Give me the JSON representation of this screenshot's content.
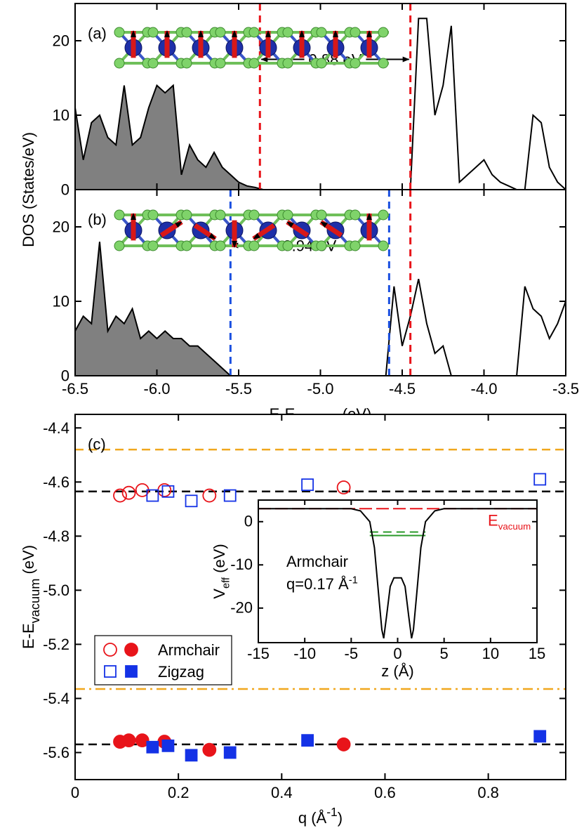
{
  "chart_data": [
    {
      "type": "line",
      "label": "(a)",
      "ylabel": "DOS (States/eV)",
      "x": [
        -6.5,
        -6.45,
        -6.4,
        -6.35,
        -6.3,
        -6.25,
        -6.2,
        -6.15,
        -6.1,
        -6.05,
        -6.0,
        -5.95,
        -5.9,
        -5.85,
        -5.8,
        -5.75,
        -5.7,
        -5.65,
        -5.6,
        -5.55,
        -5.5,
        -5.45,
        -5.4,
        -5.35,
        -5.3,
        -5.25,
        -5.2,
        -5.15,
        -5.1,
        -5.05,
        -5.0,
        -4.95,
        -4.9,
        -4.85,
        -4.8,
        -4.75,
        -4.7,
        -4.65,
        -4.6,
        -4.55,
        -4.5,
        -4.45,
        -4.4,
        -4.35,
        -4.3,
        -4.25,
        -4.2,
        -4.15,
        -4.1,
        -4.05,
        -4.0,
        -3.95,
        -3.9,
        -3.85,
        -3.8,
        -3.75,
        -3.7,
        -3.65,
        -3.6,
        -3.55,
        -3.5
      ],
      "values": [
        11,
        4,
        9,
        10,
        7,
        6,
        14,
        6,
        7,
        11,
        14,
        13,
        14,
        2,
        6,
        4,
        3,
        5,
        3,
        2,
        1,
        0.5,
        0.3,
        0,
        0,
        0,
        0,
        0,
        0,
        0,
        0,
        0,
        0,
        0,
        0,
        0,
        0,
        0,
        0,
        0,
        0,
        0,
        23,
        23,
        10,
        14,
        22,
        1,
        2,
        3,
        4,
        2,
        1,
        0.5,
        0,
        0,
        10,
        9,
        3,
        1,
        0
      ],
      "color": "#000000",
      "fill_color": "#808080",
      "xlim": [
        -6.5,
        -3.5
      ],
      "ylim": [
        0,
        25
      ],
      "yticks": [
        0,
        10,
        20
      ],
      "xticks": [
        -6.5,
        {
          "value": -6,
          "label": "-6.0"
        },
        -5.5,
        {
          "value": -5,
          "label": "-5.0"
        },
        -4.5,
        {
          "value": -4,
          "label": "-4.0"
        },
        -3.5
      ],
      "vlines": [
        {
          "x": -5.37,
          "color": "#e8141a"
        },
        {
          "x": -4.45,
          "color": "#e8141a"
        }
      ],
      "gap_label": "0.88 eV"
    },
    {
      "type": "line",
      "label": "(b)",
      "xlabel": {
        "text": "E-E",
        "sub": "vacuum",
        "end": " (eV)"
      },
      "x": [
        -6.5,
        -6.45,
        -6.4,
        -6.35,
        -6.3,
        -6.25,
        -6.2,
        -6.15,
        -6.1,
        -6.05,
        -6.0,
        -5.95,
        -5.9,
        -5.85,
        -5.8,
        -5.75,
        -5.7,
        -5.65,
        -5.6,
        -5.55,
        -5.5,
        -5.45,
        -5.4,
        -5.35,
        -5.3,
        -5.25,
        -5.2,
        -5.15,
        -5.1,
        -5.05,
        -5.0,
        -4.95,
        -4.9,
        -4.85,
        -4.8,
        -4.75,
        -4.7,
        -4.65,
        -4.6,
        -4.55,
        -4.5,
        -4.45,
        -4.4,
        -4.35,
        -4.3,
        -4.25,
        -4.2,
        -4.15,
        -4.1,
        -4.05,
        -4.0,
        -3.95,
        -3.9,
        -3.85,
        -3.8,
        -3.75,
        -3.7,
        -3.65,
        -3.6,
        -3.55,
        -3.5
      ],
      "values": [
        6,
        8,
        7,
        18,
        6,
        8,
        7,
        9,
        5,
        6,
        5,
        6,
        5,
        5,
        4,
        4,
        3,
        2,
        1,
        0,
        0,
        0,
        0,
        0,
        0,
        0,
        0,
        0,
        0,
        0,
        0,
        0,
        0,
        0,
        0,
        0,
        0,
        0,
        0,
        12,
        4,
        8,
        13,
        7,
        3,
        4,
        0,
        0,
        0,
        0,
        0,
        0,
        0,
        0,
        0,
        12,
        9,
        8,
        5,
        7,
        10
      ],
      "color": "#000000",
      "fill_color": "#808080",
      "xlim": [
        -6.5,
        -3.5
      ],
      "ylim": [
        0,
        25
      ],
      "yticks": [
        0,
        10,
        20
      ],
      "xticks": [
        -6.5,
        {
          "value": -6,
          "label": "-6.0"
        },
        -5.5,
        {
          "value": -5,
          "label": "-5.0"
        },
        -4.5,
        {
          "value": -4,
          "label": "-4.0"
        },
        -3.5
      ],
      "vlines": [
        {
          "x": -5.55,
          "color": "#1a4fe0"
        },
        {
          "x": -4.58,
          "color": "#1a4fe0"
        },
        {
          "x": -4.45,
          "color": "#e8141a"
        }
      ],
      "gap_label": "0.94 eV"
    },
    {
      "type": "scatter",
      "label": "(c)",
      "ylabel": {
        "text": "E-E",
        "sub": "vacuum",
        "end": " (eV)"
      },
      "xlabel": {
        "text": "q (Å",
        "sup": "-1",
        "end": ")"
      },
      "series": [
        {
          "name": "Armchair",
          "color": "#e8141a",
          "marker": "circle",
          "x": [
            0.087,
            0.104,
            0.13,
            0.173,
            0.26,
            0.52
          ],
          "open_values": [
            -4.65,
            -4.64,
            -4.63,
            -4.63,
            -4.65,
            -4.62
          ],
          "filled_values": [
            -5.56,
            -5.555,
            -5.555,
            -5.56,
            -5.59,
            -5.57
          ]
        },
        {
          "name": "Zigzag",
          "color": "#1432e6",
          "marker": "square",
          "x": [
            0.15,
            0.18,
            0.225,
            0.3,
            0.45,
            0.9
          ],
          "open_values": [
            -4.65,
            -4.635,
            -4.67,
            -4.65,
            -4.61,
            -4.59
          ],
          "filled_values": [
            -5.58,
            -5.575,
            -5.61,
            -5.6,
            -5.555,
            -5.54
          ]
        }
      ],
      "hlines": [
        {
          "y": -4.635,
          "color": "#000000",
          "style": "dashed"
        },
        {
          "y": -5.57,
          "color": "#000000",
          "style": "dashed"
        },
        {
          "y": -4.48,
          "color": "#f0a71e",
          "style": "dashed"
        },
        {
          "y": -5.365,
          "color": "#f0a71e",
          "style": "dashdot"
        }
      ],
      "xlim": [
        0,
        0.95
      ],
      "ylim": [
        -5.7,
        -4.35
      ],
      "xticks": [
        0,
        0.2,
        0.4,
        0.6,
        0.8
      ],
      "yticks": [
        -4.4,
        -4.6,
        -4.8,
        {
          "value": -5,
          "label": "-5.0"
        },
        -5.2,
        -5.4,
        -5.6
      ],
      "legend": "lower left"
    },
    {
      "type": "line",
      "inset": true,
      "xlabel": "z (Å)",
      "ylabel": {
        "text": "V",
        "sub": "eff",
        "end": " (eV)"
      },
      "x": [
        -15,
        -5,
        -4,
        -3,
        -2.5,
        -2,
        -1.7,
        -1.5,
        -1.2,
        -0.8,
        -0.4,
        0,
        0.4,
        0.8,
        1.2,
        1.5,
        1.7,
        2,
        2.5,
        3,
        4,
        5,
        15
      ],
      "values": [
        3,
        3,
        2.5,
        0,
        -6,
        -18,
        -25,
        -27,
        -22,
        -15,
        -13,
        -13,
        -13,
        -15,
        -22,
        -27,
        -25,
        -18,
        -6,
        0,
        2.5,
        3,
        3
      ],
      "color": "#000000",
      "xlim": [
        -15,
        15
      ],
      "ylim": [
        -28,
        5
      ],
      "xticks": [
        -15,
        -10,
        -5,
        0,
        5,
        10,
        15
      ],
      "yticks": [
        0,
        -10,
        -20
      ],
      "hlines": [
        {
          "y": 3,
          "color": "#e8141a",
          "style": "longdash",
          "label": {
            "text": "E",
            "sub": "vacuum"
          }
        },
        {
          "y": -3.2,
          "color": "#2a9a2a",
          "style": "solid"
        },
        {
          "y": -2.4,
          "color": "#2a9a2a",
          "style": "dashed"
        }
      ],
      "annotations": [
        "Armchair",
        {
          "text": "q=0.17 Å",
          "sup": "-1"
        }
      ]
    }
  ]
}
